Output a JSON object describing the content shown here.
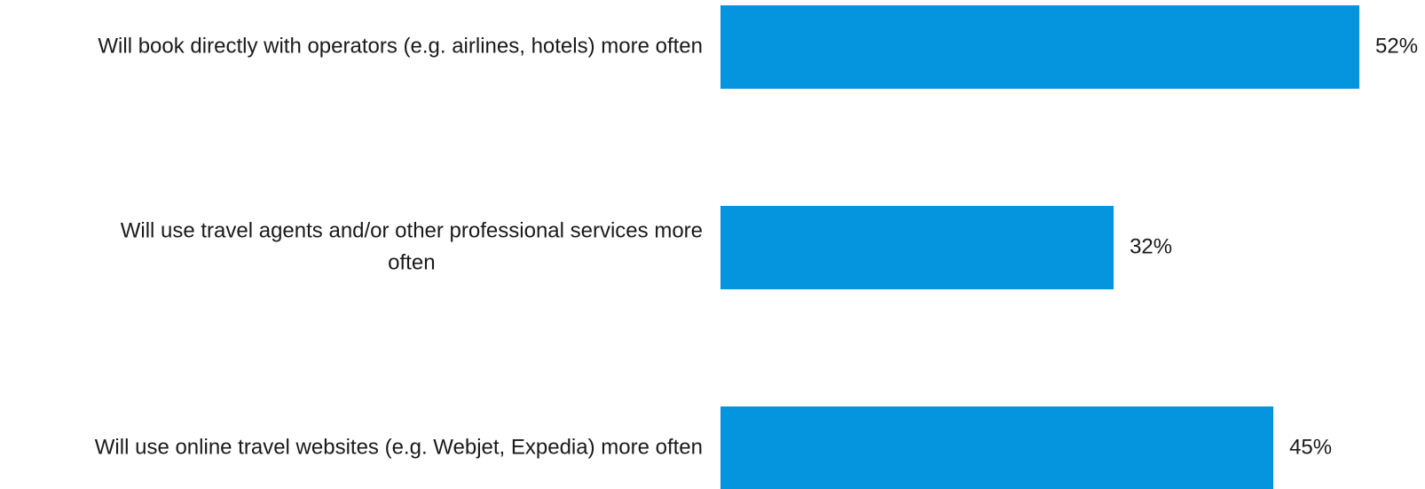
{
  "chart_data": {
    "type": "bar",
    "orientation": "horizontal",
    "categories": [
      "Will book directly with operators (e.g. airlines, hotels) more often",
      "Will use travel agents and/or other professional services more often",
      "Will use online travel websites (e.g. Webjet, Expedia) more often"
    ],
    "category_lines": [
      [
        "Will book directly with operators (e.g. airlines, hotels) more often"
      ],
      [
        "Will use travel agents and/or other professional services more",
        "often"
      ],
      [
        "Will use online travel websites (e.g. Webjet, Expedia) more often"
      ]
    ],
    "values": [
      52,
      32,
      45
    ],
    "value_labels": [
      "52%",
      "32%",
      "45%"
    ],
    "unit": "%",
    "title": "",
    "xlabel": "",
    "ylabel": "",
    "xlim": [
      0,
      52
    ],
    "grid": false,
    "legend": "none",
    "colors": {
      "bar": "#0594DE",
      "text": "#1a1a1a",
      "background": "#ffffff"
    }
  }
}
